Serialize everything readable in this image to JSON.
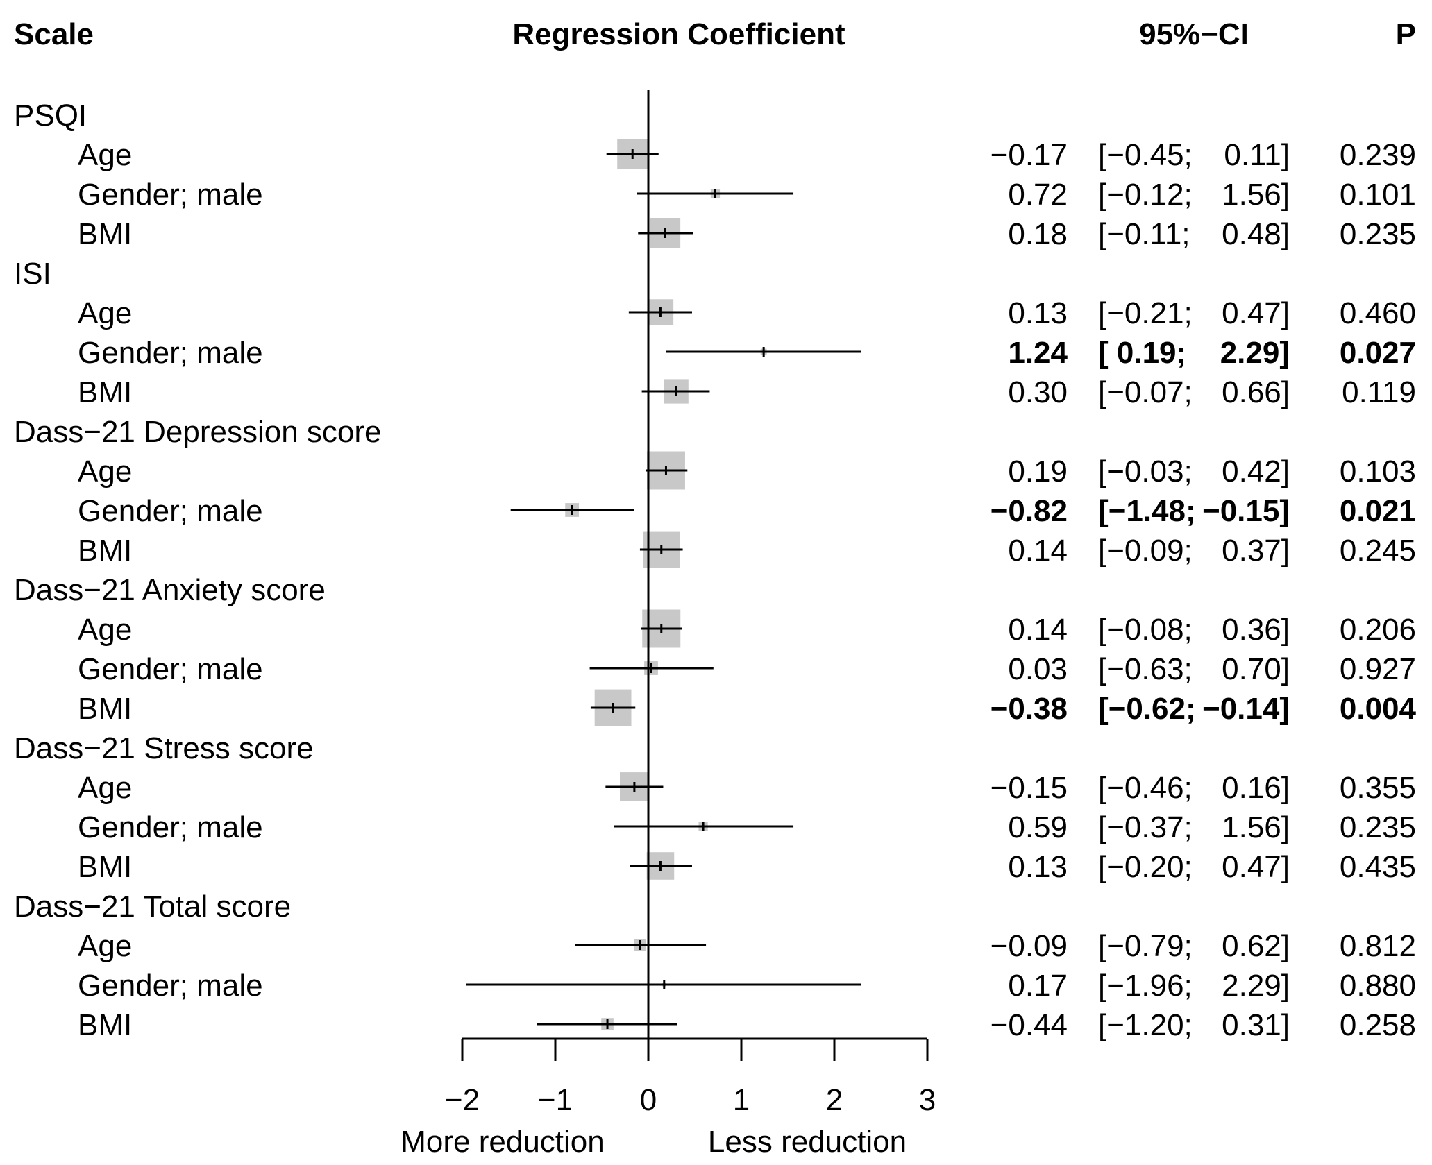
{
  "chart_data": {
    "type": "forest",
    "headers": {
      "scale": "Scale",
      "effect": "Regression Coefficient",
      "ci": "95%−CI",
      "p": "P"
    },
    "xaxis": {
      "ticks": [
        -2,
        -1,
        0,
        1,
        2,
        3
      ],
      "tick_labels": [
        "−2",
        "−1",
        "0",
        "1",
        "2",
        "3"
      ],
      "xlim": [
        -2,
        3
      ],
      "left_label": "More reduction",
      "right_label": "Less reduction"
    },
    "groups": [
      {
        "name": "PSQI",
        "rows": [
          {
            "label": "Age",
            "estimate": -0.17,
            "lower": -0.45,
            "upper": 0.11,
            "est_text": "−0.17",
            "ci_lo_text": "[−0.45;",
            "ci_hi_text": "0.11]",
            "p": "0.239",
            "bold": false,
            "weight": 1.0
          },
          {
            "label": "Gender; male",
            "estimate": 0.72,
            "lower": -0.12,
            "upper": 1.56,
            "est_text": "0.72",
            "ci_lo_text": "[−0.12;",
            "ci_hi_text": "1.56]",
            "p": "0.101",
            "bold": false,
            "weight": 0.3
          },
          {
            "label": "BMI",
            "estimate": 0.18,
            "lower": -0.11,
            "upper": 0.48,
            "est_text": "0.18",
            "ci_lo_text": "[−0.11;",
            "ci_hi_text": "0.48]",
            "p": "0.235",
            "bold": false,
            "weight": 1.0
          }
        ]
      },
      {
        "name": "ISI",
        "rows": [
          {
            "label": "Age",
            "estimate": 0.13,
            "lower": -0.21,
            "upper": 0.47,
            "est_text": "0.13",
            "ci_lo_text": "[−0.21;",
            "ci_hi_text": "0.47]",
            "p": "0.460",
            "bold": false,
            "weight": 0.85
          },
          {
            "label": "Gender; male",
            "estimate": 1.24,
            "lower": 0.19,
            "upper": 2.29,
            "est_text": "1.24",
            "ci_lo_text": "[ 0.19;",
            "ci_hi_text": "2.29]",
            "p": "0.027",
            "bold": true,
            "weight": 0.2
          },
          {
            "label": "BMI",
            "estimate": 0.3,
            "lower": -0.07,
            "upper": 0.66,
            "est_text": "0.30",
            "ci_lo_text": "[−0.07;",
            "ci_hi_text": "0.66]",
            "p": "0.119",
            "bold": false,
            "weight": 0.8
          }
        ]
      },
      {
        "name": "Dass−21 Depression score",
        "rows": [
          {
            "label": "Age",
            "estimate": 0.19,
            "lower": -0.03,
            "upper": 0.42,
            "est_text": "0.19",
            "ci_lo_text": "[−0.03;",
            "ci_hi_text": "0.42]",
            "p": "0.103",
            "bold": false,
            "weight": 1.25
          },
          {
            "label": "Gender; male",
            "estimate": -0.82,
            "lower": -1.48,
            "upper": -0.15,
            "est_text": "−0.82",
            "ci_lo_text": "[−1.48;",
            "ci_hi_text": "−0.15]",
            "p": "0.021",
            "bold": true,
            "weight": 0.45
          },
          {
            "label": "BMI",
            "estimate": 0.14,
            "lower": -0.09,
            "upper": 0.37,
            "est_text": "0.14",
            "ci_lo_text": "[−0.09;",
            "ci_hi_text": "0.37]",
            "p": "0.245",
            "bold": false,
            "weight": 1.2
          }
        ]
      },
      {
        "name": "Dass−21 Anxiety score",
        "rows": [
          {
            "label": "Age",
            "estimate": 0.14,
            "lower": -0.08,
            "upper": 0.36,
            "est_text": "0.14",
            "ci_lo_text": "[−0.08;",
            "ci_hi_text": "0.36]",
            "p": "0.206",
            "bold": false,
            "weight": 1.25
          },
          {
            "label": "Gender; male",
            "estimate": 0.03,
            "lower": -0.63,
            "upper": 0.7,
            "est_text": "0.03",
            "ci_lo_text": "[−0.63;",
            "ci_hi_text": "0.70]",
            "p": "0.927",
            "bold": false,
            "weight": 0.45
          },
          {
            "label": "BMI",
            "estimate": -0.38,
            "lower": -0.62,
            "upper": -0.14,
            "est_text": "−0.38",
            "ci_lo_text": "[−0.62;",
            "ci_hi_text": "−0.14]",
            "p": "0.004",
            "bold": true,
            "weight": 1.2
          }
        ]
      },
      {
        "name": "Dass−21 Stress score",
        "rows": [
          {
            "label": "Age",
            "estimate": -0.15,
            "lower": -0.46,
            "upper": 0.16,
            "est_text": "−0.15",
            "ci_lo_text": "[−0.46;",
            "ci_hi_text": "0.16]",
            "p": "0.355",
            "bold": false,
            "weight": 0.95
          },
          {
            "label": "Gender; male",
            "estimate": 0.59,
            "lower": -0.37,
            "upper": 1.56,
            "est_text": "0.59",
            "ci_lo_text": "[−0.37;",
            "ci_hi_text": "1.56]",
            "p": "0.235",
            "bold": false,
            "weight": 0.3
          },
          {
            "label": "BMI",
            "estimate": 0.13,
            "lower": -0.2,
            "upper": 0.47,
            "est_text": "0.13",
            "ci_lo_text": "[−0.20;",
            "ci_hi_text": "0.47]",
            "p": "0.435",
            "bold": false,
            "weight": 0.9
          }
        ]
      },
      {
        "name": "Dass−21 Total score",
        "rows": [
          {
            "label": "Age",
            "estimate": -0.09,
            "lower": -0.79,
            "upper": 0.62,
            "est_text": "−0.09",
            "ci_lo_text": "[−0.79;",
            "ci_hi_text": "0.62]",
            "p": "0.812",
            "bold": false,
            "weight": 0.4
          },
          {
            "label": "Gender; male",
            "estimate": 0.17,
            "lower": -1.96,
            "upper": 2.29,
            "est_text": "0.17",
            "ci_lo_text": "[−1.96;",
            "ci_hi_text": "2.29]",
            "p": "0.880",
            "bold": false,
            "weight": 0.12
          },
          {
            "label": "BMI",
            "estimate": -0.44,
            "lower": -1.2,
            "upper": 0.31,
            "est_text": "−0.44",
            "ci_lo_text": "[−1.20;",
            "ci_hi_text": "0.31]",
            "p": "0.258",
            "bold": false,
            "weight": 0.4
          }
        ]
      }
    ],
    "colors": {
      "box": "#c8c8c8",
      "line": "#000000",
      "text": "#000000"
    }
  }
}
